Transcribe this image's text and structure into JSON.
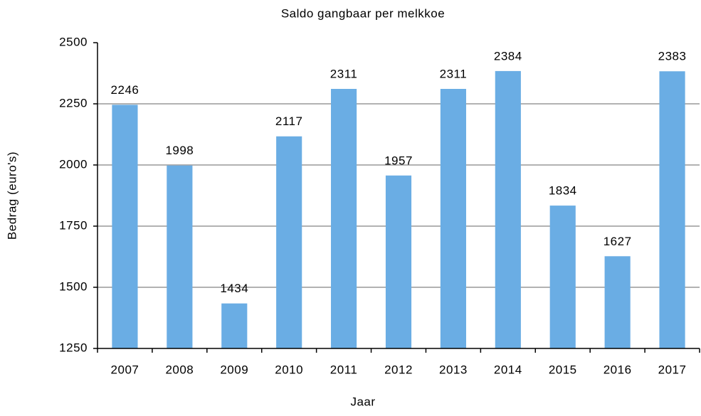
{
  "chart_data": {
    "type": "bar",
    "title": "Saldo gangbaar per melkkoe",
    "x_label": "Jaar",
    "y_label": "Bedrag (euro's)",
    "categories": [
      "2007",
      "2008",
      "2009",
      "2010",
      "2011",
      "2012",
      "2013",
      "2014",
      "2015",
      "2016",
      "2017"
    ],
    "values": [
      2246,
      1998,
      1434,
      2117,
      2311,
      1957,
      2311,
      2384,
      1834,
      1627,
      2383
    ],
    "color": "#6aade4",
    "ylim": [
      1250,
      2500
    ],
    "yticks": [
      1250,
      1500,
      1750,
      2000,
      2250,
      2500
    ],
    "grid": true
  }
}
